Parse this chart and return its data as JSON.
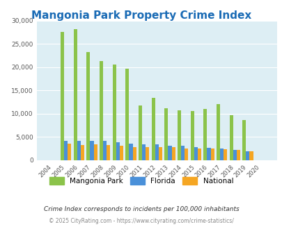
{
  "title": "Mangonia Park Property Crime Index",
  "years": [
    2004,
    2005,
    2006,
    2007,
    2008,
    2009,
    2010,
    2011,
    2012,
    2013,
    2014,
    2015,
    2016,
    2017,
    2018,
    2019,
    2020
  ],
  "mangonia": [
    0,
    27500,
    28200,
    23300,
    21300,
    20500,
    19600,
    11700,
    13400,
    11200,
    10800,
    10600,
    11000,
    12100,
    9700,
    8700,
    0
  ],
  "florida": [
    0,
    4100,
    4100,
    4200,
    4100,
    3900,
    3600,
    3500,
    3400,
    3200,
    3100,
    2800,
    2700,
    2500,
    2300,
    2000,
    0
  ],
  "national": [
    0,
    3600,
    3300,
    3400,
    3300,
    3100,
    2900,
    2900,
    2900,
    2900,
    2600,
    2500,
    2500,
    2400,
    2200,
    2000,
    0
  ],
  "mangonia_color": "#8bc34a",
  "florida_color": "#4a90d9",
  "national_color": "#f5a623",
  "bg_color": "#ddeef4",
  "ylim": [
    0,
    30000
  ],
  "yticks": [
    0,
    5000,
    10000,
    15000,
    20000,
    25000,
    30000
  ],
  "xlabel_note": "Crime Index corresponds to incidents per 100,000 inhabitants",
  "footer": "© 2025 CityRating.com - https://www.cityrating.com/crime-statistics/",
  "legend_labels": [
    "Mangonia Park",
    "Florida",
    "National"
  ]
}
